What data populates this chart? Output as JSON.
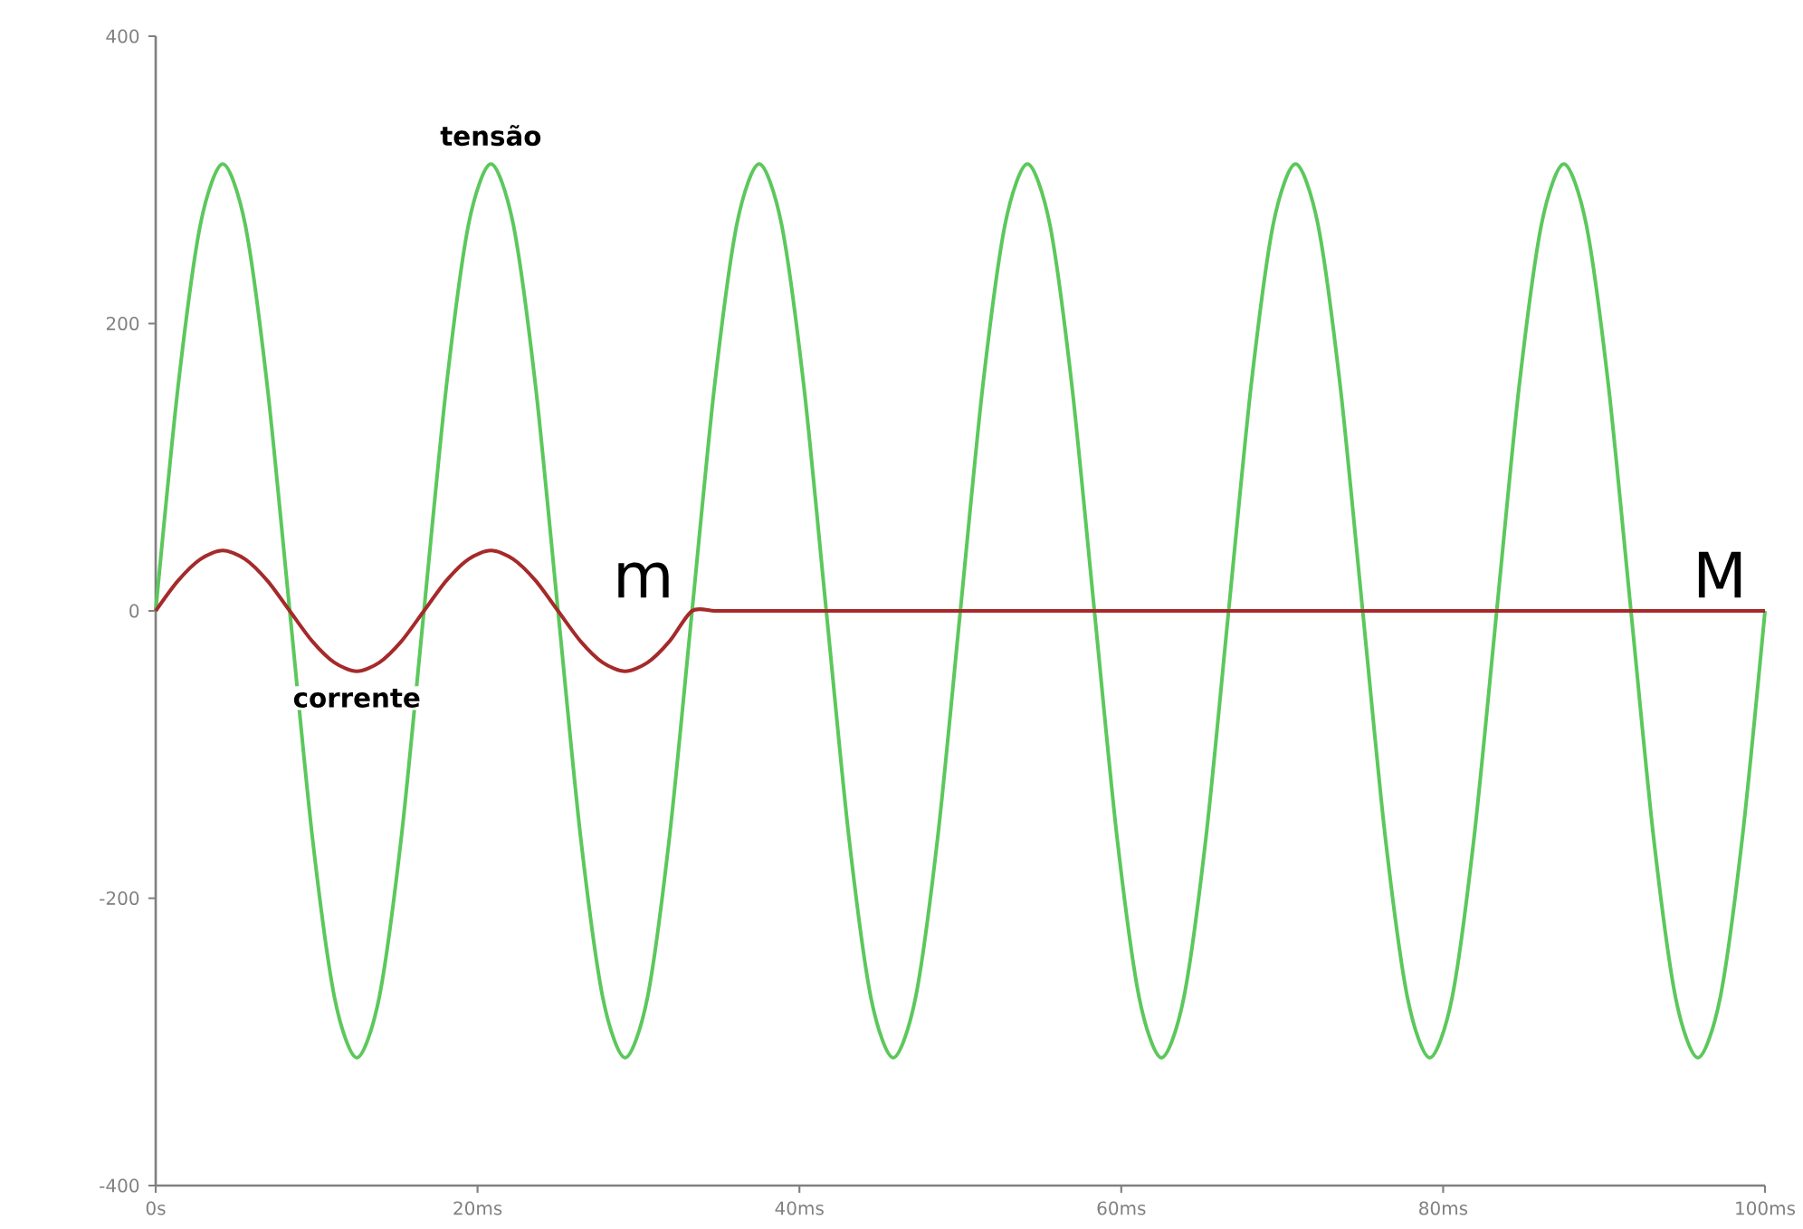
{
  "chart_data": {
    "type": "line",
    "xlim": [
      0,
      100
    ],
    "ylim": [
      -400,
      400
    ],
    "xticks": [
      {
        "value": 0,
        "label": "0s"
      },
      {
        "value": 20,
        "label": "20ms"
      },
      {
        "value": 40,
        "label": "40ms"
      },
      {
        "value": 60,
        "label": "60ms"
      },
      {
        "value": 80,
        "label": "80ms"
      },
      {
        "value": 100,
        "label": "100ms"
      }
    ],
    "yticks": [
      -400,
      -200,
      0,
      200,
      400
    ],
    "grid": false,
    "marker": "none",
    "line_style": "solid",
    "series": [
      {
        "color": "#5cc85c",
        "x": [
          0,
          1.39,
          2.78,
          4.17,
          5.56,
          6.94,
          8.33,
          9.72,
          11.11,
          12.5,
          13.89,
          15.28,
          16.67,
          18.06,
          19.44,
          20.83,
          22.22,
          23.61,
          25,
          26.39,
          27.78,
          29.17,
          30.56,
          31.94,
          33.33,
          34.72,
          36.11,
          37.5,
          38.89,
          40.28,
          41.67,
          43.06,
          44.44,
          45.83,
          47.22,
          48.61,
          50,
          51.39,
          52.78,
          54.17,
          55.56,
          56.94,
          58.33,
          59.72,
          61.11,
          62.5,
          63.89,
          65.28,
          66.67,
          68.06,
          69.44,
          70.83,
          72.22,
          73.61,
          75,
          76.39,
          77.78,
          79.17,
          80.56,
          81.94,
          83.33,
          84.72,
          86.11,
          87.5,
          88.89,
          90.28,
          91.67,
          93.06,
          94.44,
          95.83,
          97.22,
          98.61,
          100
        ],
        "values": [
          0,
          156,
          269,
          311,
          269,
          156,
          0,
          -156,
          -269,
          -311,
          -269,
          -156,
          0,
          156,
          269,
          311,
          269,
          156,
          0,
          -156,
          -269,
          -311,
          -269,
          -156,
          0,
          156,
          269,
          311,
          269,
          156,
          0,
          -156,
          -269,
          -311,
          -269,
          -156,
          0,
          156,
          269,
          311,
          269,
          156,
          0,
          -156,
          -269,
          -311,
          -269,
          -156,
          0,
          156,
          269,
          311,
          269,
          156,
          0,
          -156,
          -269,
          -311,
          -269,
          -156,
          0,
          156,
          269,
          311,
          269,
          156,
          0,
          -156,
          -269,
          -311,
          -269,
          -156,
          0
        ]
      },
      {
        "color": "#a52a2a",
        "x": [
          0,
          1.39,
          2.78,
          4.17,
          5.56,
          6.94,
          8.33,
          9.72,
          11.11,
          12.5,
          13.89,
          15.28,
          16.67,
          18.06,
          19.44,
          20.83,
          22.22,
          23.61,
          25,
          26.39,
          27.78,
          29.17,
          30.56,
          31.94,
          33.33,
          34.72,
          36.11,
          37.5,
          38.89,
          40.28,
          41.67,
          43.06,
          44.44,
          45.83,
          47.22,
          48.61,
          50,
          51.39,
          52.78,
          54.17,
          55.56,
          56.94,
          58.33,
          59.72,
          61.11,
          62.5,
          63.89,
          65.28,
          66.67,
          68.06,
          69.44,
          70.83,
          72.22,
          73.61,
          75,
          76.39,
          77.78,
          79.17,
          80.56,
          81.94,
          83.33,
          84.72,
          86.11,
          87.5,
          88.89,
          90.28,
          91.67,
          93.06,
          94.44,
          95.83,
          97.22,
          98.61,
          100
        ],
        "values": [
          0,
          21,
          36,
          42,
          36,
          21,
          0,
          -21,
          -36,
          -42,
          -36,
          -21,
          0,
          21,
          36,
          42,
          36,
          21,
          0,
          -21,
          -36,
          -42,
          -36,
          -21,
          0,
          0,
          0,
          0,
          0,
          0,
          0,
          0,
          0,
          0,
          0,
          0,
          0,
          0,
          0,
          0,
          0,
          0,
          0,
          0,
          0,
          0,
          0,
          0,
          0,
          0,
          0,
          0,
          0,
          0,
          0,
          0,
          0,
          0,
          0,
          0,
          0,
          0,
          0,
          0,
          0,
          0,
          0,
          0,
          0,
          0,
          0,
          0,
          0
        ]
      }
    ],
    "annotations": [
      {
        "text": "tensão",
        "x": 20.83,
        "y": 311
      },
      {
        "text": "corrente",
        "x": 12.5,
        "y": -42
      },
      {
        "text": "m",
        "x": 33.33,
        "y": 0
      },
      {
        "text": "M",
        "x": 100,
        "y": 0
      }
    ]
  }
}
